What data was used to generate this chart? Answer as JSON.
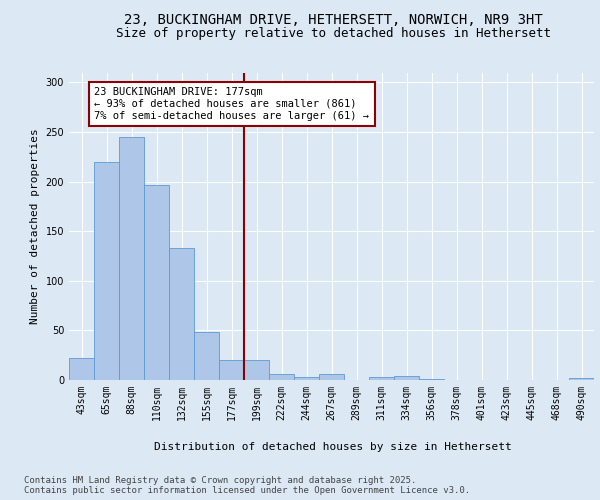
{
  "title_line1": "23, BUCKINGHAM DRIVE, HETHERSETT, NORWICH, NR9 3HT",
  "title_line2": "Size of property relative to detached houses in Hethersett",
  "xlabel": "Distribution of detached houses by size in Hethersett",
  "ylabel": "Number of detached properties",
  "categories": [
    "43sqm",
    "65sqm",
    "88sqm",
    "110sqm",
    "132sqm",
    "155sqm",
    "177sqm",
    "199sqm",
    "222sqm",
    "244sqm",
    "267sqm",
    "289sqm",
    "311sqm",
    "334sqm",
    "356sqm",
    "378sqm",
    "401sqm",
    "423sqm",
    "445sqm",
    "468sqm",
    "490sqm"
  ],
  "values": [
    22,
    220,
    245,
    197,
    133,
    48,
    20,
    20,
    6,
    3,
    6,
    0,
    3,
    4,
    1,
    0,
    0,
    0,
    0,
    0,
    2
  ],
  "bar_color": "#aec6e8",
  "bar_edge_color": "#5b9bd5",
  "vline_index": 6,
  "vline_color": "#8b0000",
  "annotation_text": "23 BUCKINGHAM DRIVE: 177sqm\n← 93% of detached houses are smaller (861)\n7% of semi-detached houses are larger (61) →",
  "annotation_box_color": "white",
  "annotation_box_edge_color": "#8b0000",
  "ylim": [
    0,
    310
  ],
  "yticks": [
    0,
    50,
    100,
    150,
    200,
    250,
    300
  ],
  "footer_text": "Contains HM Land Registry data © Crown copyright and database right 2025.\nContains public sector information licensed under the Open Government Licence v3.0.",
  "background_color": "#dce9f5",
  "plot_bg_color": "#dce9f5",
  "grid_color": "white",
  "title_fontsize": 10,
  "subtitle_fontsize": 9,
  "axis_label_fontsize": 8,
  "tick_fontsize": 7,
  "footer_fontsize": 6.5,
  "annotation_fontsize": 7.5
}
